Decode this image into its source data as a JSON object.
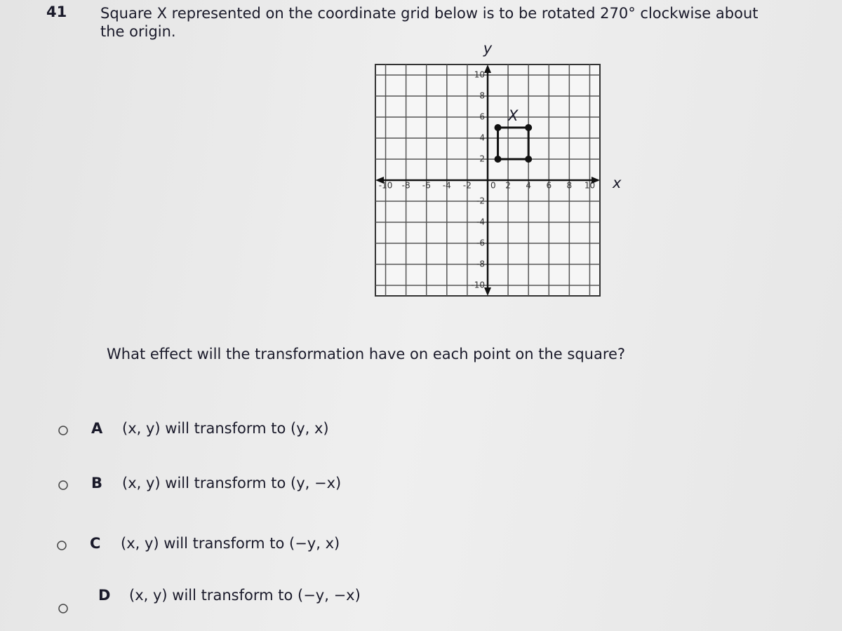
{
  "question": {
    "number": "41",
    "text_lines": [
      "Square X represented on the coordinate grid below is to be rotated 270° clockwise about",
      "the origin."
    ]
  },
  "grid": {
    "x_label": "x",
    "y_label": "y",
    "xlim": [
      -11,
      11
    ],
    "ylim": [
      -11,
      11
    ],
    "xticks": [
      -10,
      -8,
      -6,
      -4,
      -2,
      2,
      4,
      6,
      8,
      10
    ],
    "yticks": [
      -10,
      -8,
      -6,
      -4,
      -2,
      2,
      4,
      6,
      8,
      10
    ],
    "origin": 0,
    "square": {
      "label": "X",
      "vertices": [
        {
          "x": 1,
          "y": 2
        },
        {
          "x": 1,
          "y": 5
        },
        {
          "x": 4,
          "y": 5
        },
        {
          "x": 4,
          "y": 2
        }
      ]
    }
  },
  "prompt": "What effect will the transformation have on each point on the square?",
  "options": [
    {
      "letter": "A",
      "text": "(x, y) will transform to (y, x)"
    },
    {
      "letter": "B",
      "text": "(x, y) will transform to (y, −x)"
    },
    {
      "letter": "C",
      "text": "(x, y) will transform to (−y, x)"
    },
    {
      "letter": "D",
      "text": "(x, y) will transform to (−y, −x)"
    }
  ]
}
